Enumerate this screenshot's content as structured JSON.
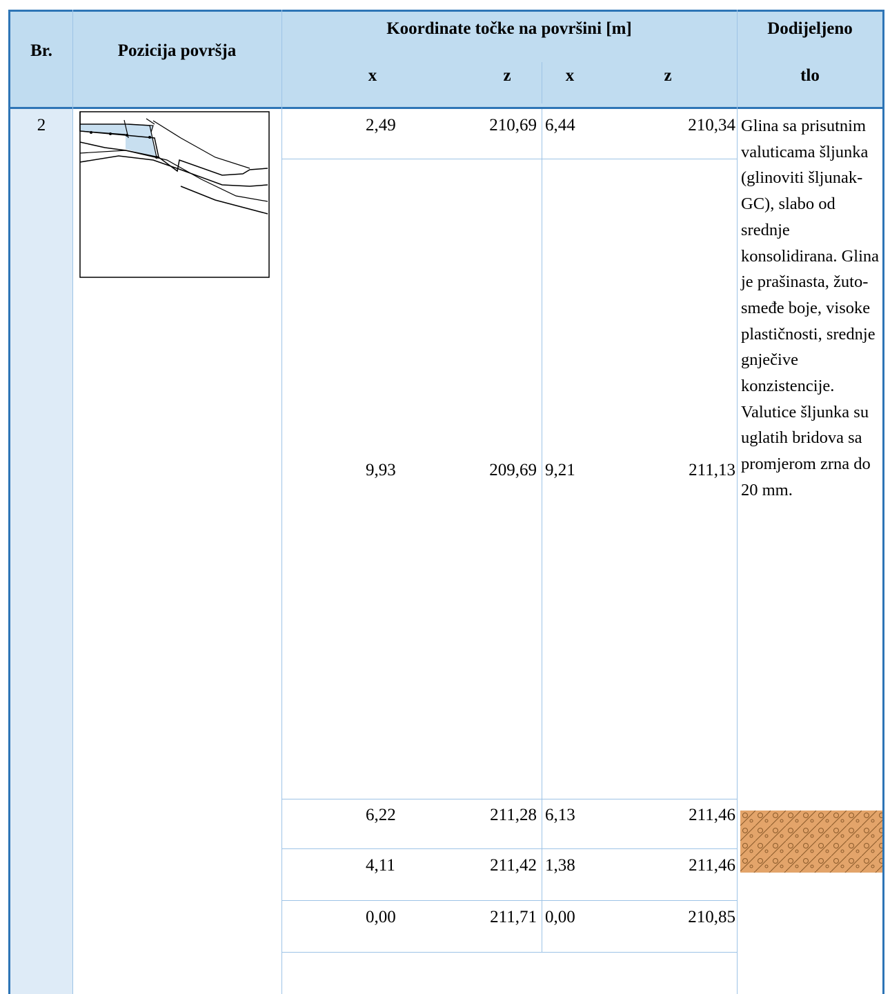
{
  "table": {
    "header": {
      "number": "Br.",
      "position": "Pozicija površja",
      "coordinates": "Koordinate točke na površini [m]",
      "coord_columns": [
        "x",
        "z",
        "x",
        "z"
      ],
      "soil": [
        "Dodijeljeno",
        "tlo"
      ]
    },
    "number": "2",
    "rows": [
      [
        "2,49",
        "210,69",
        "6,44",
        "210,34"
      ],
      [
        "9,93",
        "209,69",
        "9,21",
        "211,13"
      ],
      [
        "6,22",
        "211,28",
        "6,13",
        "211,46"
      ],
      [
        "4,11",
        "211,42",
        "1,38",
        "211,46"
      ],
      [
        "0,00",
        "211,71",
        "0,00",
        "210,85"
      ]
    ],
    "soil_description": "Glina sa prisutnim valuticama šljunka (glinoviti šljunak- GC), slabo od srednje konsolidirana. Glina je prašinasta, žuto-smeđe boje, visoke plastičnosti, srednje gnječive konzistencije. Valutice šljunka su uglatih bridova sa promjerom zrna do 20 mm."
  }
}
